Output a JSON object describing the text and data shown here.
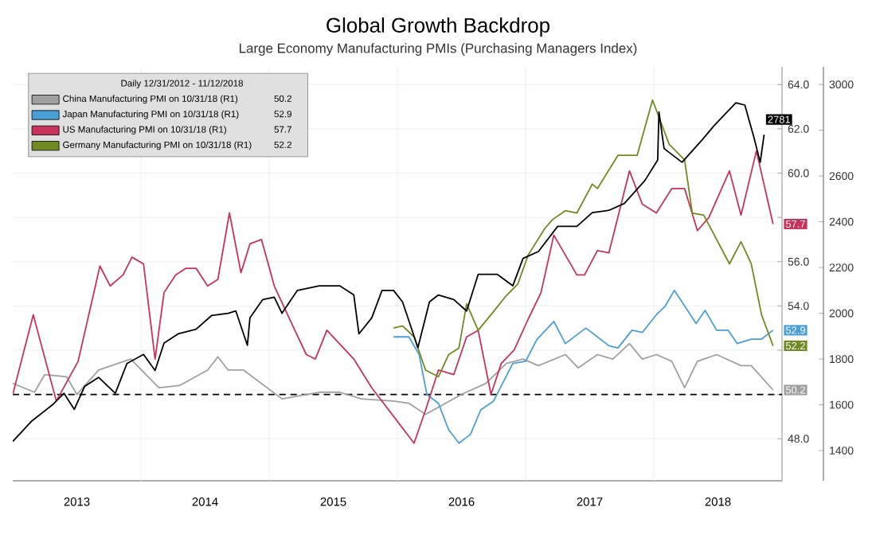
{
  "chart_data": {
    "type": "line",
    "title": "Global Growth Backdrop",
    "subtitle": "Large Economy Manufacturing PMIs (Purchasing Managers Index)",
    "legend_title": "Daily 12/31/2012 - 11/12/2018",
    "legend": "top left",
    "grid": true,
    "xlim": [
      2013,
      2019
    ],
    "xticks": [
      {
        "value": 2013.5,
        "label": "2013"
      },
      {
        "value": 2014,
        "label": null
      },
      {
        "value": 2014.5,
        "label": "2014"
      },
      {
        "value": 2015,
        "label": null
      },
      {
        "value": 2015.5,
        "label": "2015"
      },
      {
        "value": 2016,
        "label": null
      },
      {
        "value": 2016.5,
        "label": "2016"
      },
      {
        "value": 2017,
        "label": null
      },
      {
        "value": 2017.5,
        "label": "2017"
      },
      {
        "value": 2018,
        "label": null
      },
      {
        "value": 2018.5,
        "label": "2018"
      },
      {
        "value": 2019,
        "label": null
      }
    ],
    "ylim": [
      46.1,
      64.8
    ],
    "yticks": [
      {
        "value": 48,
        "label": "48.0"
      },
      {
        "value": 50,
        "label": null
      },
      {
        "value": 52,
        "label": null
      },
      {
        "value": 54,
        "label": "54.0"
      },
      {
        "value": 56,
        "label": "56.0"
      },
      {
        "value": 58,
        "label": null
      },
      {
        "value": 60,
        "label": "60.0"
      },
      {
        "value": 62,
        "label": "62.0"
      },
      {
        "value": 64,
        "label": "64.0"
      }
    ],
    "y2lim": [
      1268,
      3077
    ],
    "y2ticks": [
      1400,
      1600,
      1800,
      2000,
      2200,
      2400,
      2600,
      {
        "value": 2800,
        "label": null
      },
      3000
    ],
    "ref_lines": [
      {
        "axis": "y",
        "value": 50,
        "line_style": "dashed"
      }
    ],
    "series": [
      {
        "name": "China Manufacturing PMI on 10/31/18 (R1)",
        "color": "#a0a0a0",
        "x": [
          2013.0,
          2013.17,
          2013.25,
          2013.42,
          2013.5,
          2013.67,
          2013.92,
          2014.14,
          2014.3,
          2014.52,
          2014.6,
          2014.68,
          2014.8,
          2015.1,
          2015.39,
          2015.55,
          2015.72,
          2015.97,
          2016.09,
          2016.22,
          2016.5,
          2016.69,
          2016.85,
          2016.98,
          2017.1,
          2017.31,
          2017.41,
          2017.56,
          2017.68,
          2017.81,
          2017.91,
          2018.02,
          2018.14,
          2018.24,
          2018.34,
          2018.49,
          2018.68,
          2018.76,
          2018.93
        ],
        "values": [
          50.5,
          50.1,
          50.9,
          50.8,
          50.0,
          51.1,
          51.6,
          50.3,
          50.4,
          51.1,
          51.7,
          51.1,
          51.1,
          49.8,
          50.1,
          50.1,
          49.8,
          49.7,
          49.6,
          49.1,
          50.0,
          50.5,
          51.4,
          51.6,
          51.3,
          51.8,
          51.2,
          51.8,
          51.6,
          52.3,
          51.6,
          51.8,
          51.5,
          50.3,
          51.5,
          51.8,
          51.3,
          51.3,
          50.2
        ],
        "value_labels": [
          null,
          null,
          null,
          null,
          null,
          null,
          null,
          null,
          null,
          null,
          null,
          null,
          null,
          null,
          null,
          null,
          null,
          null,
          null,
          null,
          null,
          null,
          null,
          null,
          null,
          null,
          null,
          null,
          null,
          null,
          null,
          null,
          null,
          null,
          null,
          null,
          null,
          null,
          "50.2"
        ]
      },
      {
        "name": "Japan Manufacturing PMI on 10/31/18 (R1)",
        "color": "#4a9fd4",
        "x": [
          2015.97,
          2016.09,
          2016.17,
          2016.23,
          2016.32,
          2016.4,
          2016.48,
          2016.57,
          2016.65,
          2016.75,
          2016.9,
          2017.0,
          2017.09,
          2017.22,
          2017.31,
          2017.47,
          2017.65,
          2017.72,
          2017.83,
          2017.91,
          2018.02,
          2018.09,
          2018.16,
          2018.24,
          2018.33,
          2018.4,
          2018.49,
          2018.58,
          2018.65,
          2018.76,
          2018.84,
          2018.93
        ],
        "values": [
          52.6,
          52.6,
          51.8,
          50.0,
          49.6,
          48.4,
          47.8,
          48.2,
          49.3,
          49.7,
          51.4,
          51.5,
          52.5,
          53.3,
          52.3,
          53.0,
          52.2,
          52.1,
          52.9,
          52.8,
          53.6,
          54.0,
          54.7,
          54.0,
          53.2,
          53.8,
          52.9,
          52.9,
          52.3,
          52.5,
          52.5,
          52.9
        ],
        "value_labels": [
          null,
          null,
          null,
          null,
          null,
          null,
          null,
          null,
          null,
          null,
          null,
          null,
          null,
          null,
          null,
          null,
          null,
          null,
          null,
          null,
          null,
          null,
          null,
          null,
          null,
          null,
          null,
          null,
          null,
          null,
          null,
          "52.9"
        ]
      },
      {
        "name": "US Manufacturing PMI  on 10/31/18 (R1)",
        "color": "#c8325a",
        "x": [
          2013.0,
          2013.16,
          2013.34,
          2013.51,
          2013.68,
          2013.76,
          2013.86,
          2013.93,
          2014.02,
          2014.11,
          2014.18,
          2014.27,
          2014.35,
          2014.43,
          2014.52,
          2014.6,
          2014.69,
          2014.78,
          2014.85,
          2014.94,
          2015.04,
          2015.2,
          2015.29,
          2015.36,
          2015.45,
          2015.66,
          2015.8,
          2016.13,
          2016.22,
          2016.32,
          2016.44,
          2016.54,
          2016.63,
          2016.73,
          2016.81,
          2016.91,
          2017.02,
          2017.12,
          2017.22,
          2017.4,
          2017.46,
          2017.56,
          2017.65,
          2017.81,
          2017.91,
          2018.02,
          2018.14,
          2018.24,
          2018.34,
          2018.43,
          2018.59,
          2018.68,
          2018.8,
          2018.93
        ],
        "values": [
          50.0,
          53.6,
          49.7,
          51.5,
          55.8,
          54.9,
          55.4,
          56.2,
          55.9,
          51.6,
          54.6,
          55.4,
          55.7,
          55.7,
          54.9,
          55.2,
          58.2,
          55.5,
          56.8,
          57.0,
          54.9,
          52.9,
          51.8,
          51.6,
          52.9,
          51.6,
          50.3,
          47.8,
          49.3,
          51.1,
          50.9,
          52.6,
          52.9,
          50.0,
          51.4,
          52.0,
          53.4,
          54.6,
          57.2,
          55.4,
          55.4,
          56.5,
          56.4,
          60.1,
          58.6,
          58.2,
          59.3,
          59.3,
          57.4,
          58.0,
          60.1,
          58.1,
          61.0,
          57.7
        ],
        "value_labels": [
          null,
          null,
          null,
          null,
          null,
          null,
          null,
          null,
          null,
          null,
          null,
          null,
          null,
          null,
          null,
          null,
          null,
          null,
          null,
          null,
          null,
          null,
          null,
          null,
          null,
          null,
          null,
          null,
          null,
          null,
          null,
          null,
          null,
          null,
          null,
          null,
          null,
          null,
          null,
          null,
          null,
          null,
          null,
          null,
          null,
          null,
          null,
          null,
          null,
          null,
          null,
          null,
          null,
          "57.7"
        ]
      },
      {
        "name": "Germany Manufacturing PMI on 10/31/18 (R1)",
        "color": "#6f8a22",
        "x": [
          2015.97,
          2016.04,
          2016.13,
          2016.22,
          2016.32,
          2016.4,
          2016.48,
          2016.54,
          2016.63,
          2016.73,
          2016.84,
          2016.94,
          2017.02,
          2017.15,
          2017.21,
          2017.31,
          2017.4,
          2017.52,
          2017.56,
          2017.72,
          2017.87,
          2017.99,
          2018.12,
          2018.24,
          2018.3,
          2018.39,
          2018.59,
          2018.68,
          2018.76,
          2018.84,
          2018.93
        ],
        "values": [
          53.0,
          53.1,
          52.6,
          51.1,
          50.8,
          51.8,
          52.1,
          54.1,
          52.9,
          53.6,
          54.4,
          55.0,
          56.3,
          57.5,
          57.9,
          58.3,
          58.2,
          59.5,
          59.3,
          60.8,
          60.8,
          63.3,
          61.3,
          60.6,
          58.2,
          58.1,
          55.9,
          56.9,
          55.9,
          53.6,
          52.2
        ],
        "value_labels": [
          null,
          null,
          null,
          null,
          null,
          null,
          null,
          null,
          null,
          null,
          null,
          null,
          null,
          null,
          null,
          null,
          null,
          null,
          null,
          null,
          null,
          null,
          null,
          null,
          null,
          null,
          null,
          null,
          null,
          null,
          "52.2"
        ]
      },
      {
        "color": "#000000",
        "axis": "y2",
        "x": [
          2013.0,
          2013.15,
          2013.31,
          2013.4,
          2013.48,
          2013.56,
          2013.67,
          2013.8,
          2013.89,
          2014.02,
          2014.11,
          2014.18,
          2014.29,
          2014.43,
          2014.55,
          2014.68,
          2014.74,
          2014.83,
          2014.85,
          2014.95,
          2015.04,
          2015.1,
          2015.22,
          2015.39,
          2015.55,
          2015.66,
          2015.7,
          2015.8,
          2015.88,
          2015.97,
          2016.04,
          2016.16,
          2016.25,
          2016.32,
          2016.44,
          2016.54,
          2016.63,
          2016.78,
          2016.9,
          2016.98,
          2017.1,
          2017.25,
          2017.4,
          2017.52,
          2017.65,
          2017.77,
          2017.93,
          2018.03,
          2018.04,
          2018.08,
          2018.22,
          2018.38,
          2018.47,
          2018.64,
          2018.71,
          2018.78,
          2018.83,
          2018.86
        ],
        "values": [
          1440,
          1530,
          1600,
          1650,
          1580,
          1680,
          1720,
          1650,
          1780,
          1820,
          1750,
          1870,
          1910,
          1930,
          1990,
          2000,
          2010,
          1860,
          1980,
          2060,
          2070,
          2000,
          2100,
          2120,
          2120,
          2080,
          1910,
          1980,
          2100,
          2100,
          2050,
          1850,
          2050,
          2080,
          2060,
          2010,
          2170,
          2170,
          2120,
          2240,
          2270,
          2380,
          2380,
          2440,
          2450,
          2480,
          2580,
          2670,
          2880,
          2720,
          2660,
          2760,
          2820,
          2920,
          2910,
          2770,
          2660,
          2781
        ],
        "value_labels": [
          null,
          null,
          null,
          null,
          null,
          null,
          null,
          null,
          null,
          null,
          null,
          null,
          null,
          null,
          null,
          null,
          null,
          null,
          null,
          null,
          null,
          null,
          null,
          null,
          null,
          null,
          null,
          null,
          null,
          null,
          null,
          null,
          null,
          null,
          null,
          null,
          null,
          null,
          null,
          null,
          null,
          null,
          null,
          null,
          null,
          null,
          null,
          null,
          null,
          null,
          null,
          null,
          null,
          null,
          null,
          null,
          null,
          "2781"
        ]
      }
    ]
  }
}
